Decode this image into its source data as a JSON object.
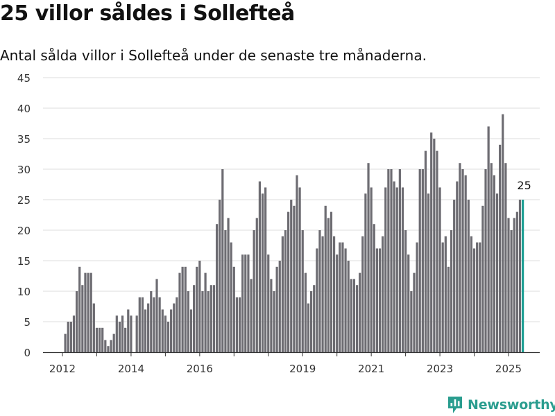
{
  "header": {
    "title": "25 villor såldes i Sollefteå",
    "subtitle": "Antal sålda villor i Sollefteå under de senaste tre månaderna."
  },
  "brand": {
    "name": "Newsworthy"
  },
  "colors": {
    "bar": "#6d6c72",
    "highlight": "#1b9e93",
    "grid": "#dddddd",
    "axis": "#333333",
    "brand": "#2a9d8f"
  },
  "chart_data": {
    "type": "bar",
    "title": "25 villor såldes i Sollefteå",
    "subtitle": "Antal sålda villor i Sollefteå under de senaste tre månaderna.",
    "xlabel": "",
    "ylabel": "",
    "ylim": [
      0,
      45
    ],
    "yticks": [
      "0",
      "5",
      "10",
      "15",
      "20",
      "25",
      "30",
      "35",
      "40",
      "45"
    ],
    "xticks": [
      "2012",
      "2013",
      "2014",
      "2015",
      "2016",
      "2017",
      "2018",
      "2019",
      "2020",
      "2021",
      "2022",
      "2023",
      "2024",
      "2025"
    ],
    "xtick_labels_shown": [
      "2012",
      "2014",
      "2016",
      "2019",
      "2021",
      "2023",
      "2025"
    ],
    "grid": true,
    "start_month": "2012-02",
    "values": [
      3,
      5,
      5,
      6,
      10,
      14,
      11,
      13,
      13,
      13,
      8,
      4,
      4,
      4,
      2,
      1,
      2,
      3,
      6,
      5,
      6,
      4,
      7,
      6,
      0,
      6,
      9,
      9,
      7,
      8,
      10,
      9,
      12,
      9,
      7,
      6,
      5,
      7,
      8,
      9,
      13,
      14,
      14,
      10,
      7,
      11,
      14,
      15,
      10,
      13,
      10,
      11,
      11,
      21,
      25,
      30,
      20,
      22,
      18,
      14,
      9,
      9,
      16,
      16,
      16,
      12,
      20,
      22,
      28,
      26,
      27,
      16,
      12,
      10,
      14,
      15,
      19,
      20,
      23,
      25,
      24,
      29,
      27,
      20,
      13,
      8,
      10,
      11,
      17,
      20,
      19,
      24,
      22,
      23,
      19,
      16,
      18,
      18,
      17,
      15,
      12,
      12,
      11,
      13,
      19,
      26,
      31,
      27,
      21,
      17,
      17,
      19,
      27,
      30,
      30,
      28,
      27,
      30,
      27,
      20,
      16,
      10,
      13,
      18,
      30,
      30,
      33,
      26,
      36,
      35,
      33,
      27,
      18,
      19,
      14,
      20,
      25,
      28,
      31,
      30,
      29,
      25,
      19,
      17,
      18,
      18,
      24,
      30,
      37,
      31,
      29,
      26,
      34,
      39,
      31,
      22,
      20,
      22,
      23,
      25,
      25
    ],
    "highlight_last": true,
    "annotation": {
      "label": "25",
      "value": 25
    }
  }
}
